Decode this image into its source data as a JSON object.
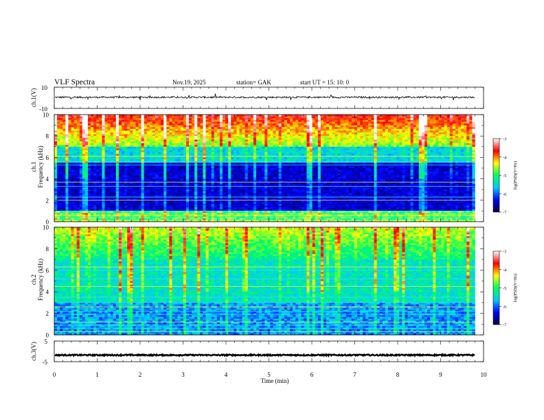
{
  "header": {
    "title": "VLF  Spectra",
    "date": "Nov.19, 2025",
    "station": "station= GAK",
    "start": "start  UT  =    15: 10: 0"
  },
  "chart_data": [
    {
      "type": "line",
      "id": "ch1-waveform",
      "ylabel": "ch.1(V)",
      "ylim": [
        -10,
        10
      ],
      "y_ticks": [
        "10",
        "-10"
      ],
      "xlim": [
        0,
        10
      ],
      "x_end": 9.8,
      "baseline": 0.5,
      "color": "#000000"
    },
    {
      "type": "heatmap",
      "id": "ch1-spectrogram",
      "ylabel": "ch.1\nFrequency  (kHz)",
      "ylabel_lines": [
        "ch.1",
        "Frequency  (kHz)"
      ],
      "ylim": [
        0,
        10
      ],
      "y_ticks": [
        "0",
        "2",
        "4",
        "6",
        "8",
        "10"
      ],
      "xlim": [
        0,
        10
      ],
      "x_end": 9.8,
      "colorbar": {
        "label": "log(PSD)(V²/Hz)",
        "range": [
          -7,
          -3
        ],
        "ticks": [
          "-3",
          "-4",
          "-5",
          "-6",
          "-7"
        ],
        "colors": [
          "#000030",
          "#0000ff",
          "#00c8ff",
          "#00ff60",
          "#ffff00",
          "#ff0000",
          "#ffffff"
        ]
      },
      "bands_kHz": [
        0.1,
        0.25,
        0.45,
        0.6,
        0.8,
        1.0,
        2.0,
        2.3,
        3.3,
        3.7,
        5.3,
        5.6,
        6.1
      ]
    },
    {
      "type": "heatmap",
      "id": "ch2-spectrogram",
      "ylabel": "ch.2\nFrequency  (kHz)",
      "ylabel_lines": [
        "ch.2",
        "Frequency  (kHz)"
      ],
      "ylim": [
        0,
        10
      ],
      "y_ticks": [
        "0",
        "2",
        "4",
        "6",
        "8",
        "10"
      ],
      "xlim": [
        0,
        10
      ],
      "x_end": 9.8,
      "colorbar": {
        "label": "log(PSD)(V²/Hz)",
        "range": [
          -7,
          -3
        ],
        "ticks": [
          "-3",
          "-4",
          "-5",
          "-6",
          "-7"
        ],
        "colors": [
          "#000030",
          "#0000ff",
          "#00c8ff",
          "#00ff60",
          "#ffff00",
          "#ff0000",
          "#ffffff"
        ]
      },
      "bands_kHz": [
        0.3,
        0.6,
        0.9,
        1.2,
        1.9,
        2.2,
        2.6,
        3.0,
        3.5,
        4.5,
        5.2,
        6.0,
        6.3
      ]
    },
    {
      "type": "line",
      "id": "ch3-waveform",
      "ylabel": "ch.3(V)",
      "ylim": [
        -5,
        5
      ],
      "y_ticks": [
        "5",
        "-5"
      ],
      "xlim": [
        0,
        10
      ],
      "x_end": 9.8,
      "baseline": -1.8,
      "color": "#000000"
    }
  ],
  "x_axis": {
    "label": "Time  (min)",
    "ticks": [
      "0",
      "1",
      "2",
      "3",
      "4",
      "5",
      "6",
      "7",
      "8",
      "9",
      "10"
    ]
  }
}
